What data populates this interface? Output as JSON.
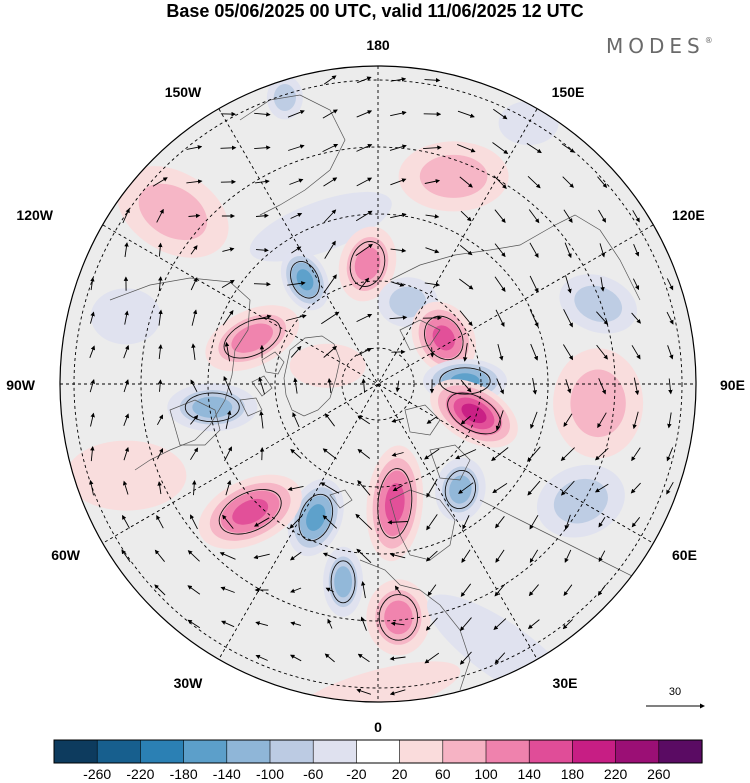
{
  "title": "Base 05/06/2025 00 UTC, valid 11/06/2025 12 UTC",
  "brand": "MODES",
  "brand_mark": "®",
  "longitude_labels": {
    "lon_180": "180",
    "lon_150w": "150W",
    "lon_150e": "150E",
    "lon_120w": "120W",
    "lon_120e": "120E",
    "lon_90w": "90W",
    "lon_90e": "90E",
    "lon_60w": "60W",
    "lon_60e": "60E",
    "lon_30w": "30W",
    "lon_30e": "30E",
    "lon_0": "0"
  },
  "reference_vector": {
    "label": "30"
  },
  "colorbar": {
    "ticks": [
      "-260",
      "-220",
      "-180",
      "-140",
      "-100",
      "-60",
      "-20",
      "20",
      "60",
      "100",
      "140",
      "180",
      "220",
      "260"
    ],
    "colors": [
      "#0d3b5e",
      "#175f8e",
      "#2b80b4",
      "#5c9fca",
      "#8fb6d8",
      "#bccbe3",
      "#dfe1ef",
      "#ffffff",
      "#fadcdc",
      "#f6b3c4",
      "#ef82ad",
      "#e04d98",
      "#c71e84",
      "#9b0f75",
      "#5a0b63"
    ]
  },
  "anomalies": [
    {
      "id": "a1",
      "lon": 160,
      "colat": 33,
      "rx": 55,
      "ry": 35,
      "rot": 0,
      "level": 2
    },
    {
      "id": "a2",
      "lon": -130,
      "colat": 40,
      "rx": 60,
      "ry": 40,
      "rot": 30,
      "level": 2
    },
    {
      "id": "a3",
      "lon": -160,
      "colat": 25,
      "rx": 75,
      "ry": 25,
      "rot": -20,
      "level": -1
    },
    {
      "id": "a4",
      "lon": -162,
      "colat": 45,
      "rx": 18,
      "ry": 22,
      "rot": 0,
      "level": -2
    },
    {
      "id": "a5",
      "lon": -145,
      "colat": 19,
      "rx": 22,
      "ry": 32,
      "rot": -25,
      "level": -4
    },
    {
      "id": "a6",
      "lon": -175,
      "colat": 18,
      "rx": 28,
      "ry": 38,
      "rot": 15,
      "level": 3
    },
    {
      "id": "a7",
      "lon": 160,
      "colat": 13,
      "rx": 30,
      "ry": 25,
      "rot": 0,
      "level": -2
    },
    {
      "id": "a8",
      "lon": 125,
      "colat": 12,
      "rx": 30,
      "ry": 38,
      "rot": -30,
      "level": 4
    },
    {
      "id": "a9",
      "lon": 110,
      "colat": 35,
      "rx": 40,
      "ry": 28,
      "rot": 20,
      "level": -2
    },
    {
      "id": "a10",
      "lon": 92,
      "colat": 13,
      "rx": 42,
      "ry": 22,
      "rot": 0,
      "level": -4
    },
    {
      "id": "a11",
      "lon": 73,
      "colat": 15,
      "rx": 48,
      "ry": 28,
      "rot": 30,
      "level": 5
    },
    {
      "id": "a12",
      "lon": 85,
      "colat": 33,
      "rx": 45,
      "ry": 55,
      "rot": 0,
      "level": 2
    },
    {
      "id": "a13",
      "lon": 60,
      "colat": 35,
      "rx": 45,
      "ry": 35,
      "rot": -20,
      "level": -2
    },
    {
      "id": "a14",
      "lon": 38,
      "colat": 20,
      "rx": 25,
      "ry": 32,
      "rot": 10,
      "level": -3
    },
    {
      "id": "a15",
      "lon": 8,
      "colat": 18,
      "rx": 28,
      "ry": 58,
      "rot": 5,
      "level": 4
    },
    {
      "id": "a16",
      "lon": 5,
      "colat": 35,
      "rx": 32,
      "ry": 38,
      "rot": 0,
      "level": 3
    },
    {
      "id": "a17",
      "lon": -10,
      "colat": 30,
      "rx": 20,
      "ry": 35,
      "rot": 0,
      "level": -3
    },
    {
      "id": "a18",
      "lon": -25,
      "colat": 22,
      "rx": 26,
      "ry": 40,
      "rot": 20,
      "level": -4
    },
    {
      "id": "a19",
      "lon": -45,
      "colat": 27,
      "rx": 55,
      "ry": 32,
      "rot": -25,
      "level": 4
    },
    {
      "id": "a20",
      "lon": -82,
      "colat": 25,
      "rx": 45,
      "ry": 24,
      "rot": 0,
      "level": -3
    },
    {
      "id": "a21",
      "lon": -110,
      "colat": 20,
      "rx": 50,
      "ry": 28,
      "rot": -25,
      "level": 3
    },
    {
      "id": "a22",
      "lon": -105,
      "colat": 39,
      "rx": 35,
      "ry": 28,
      "rot": 0,
      "level": -1
    },
    {
      "id": "a23",
      "lon": -110,
      "colat": 8,
      "rx": 38,
      "ry": 22,
      "rot": 0,
      "level": 1
    },
    {
      "id": "a24",
      "lon": -70,
      "colat": 40,
      "rx": 60,
      "ry": 35,
      "rot": 0,
      "level": 1
    },
    {
      "id": "a25",
      "lon": 25,
      "colat": 44,
      "rx": 90,
      "ry": 28,
      "rot": 35,
      "level": -1
    },
    {
      "id": "a26",
      "lon": 0,
      "colat": 46,
      "rx": 85,
      "ry": 22,
      "rot": -15,
      "level": 1
    },
    {
      "id": "a27",
      "lon": 150,
      "colat": 45,
      "rx": 30,
      "ry": 22,
      "rot": 0,
      "level": -1
    }
  ]
}
